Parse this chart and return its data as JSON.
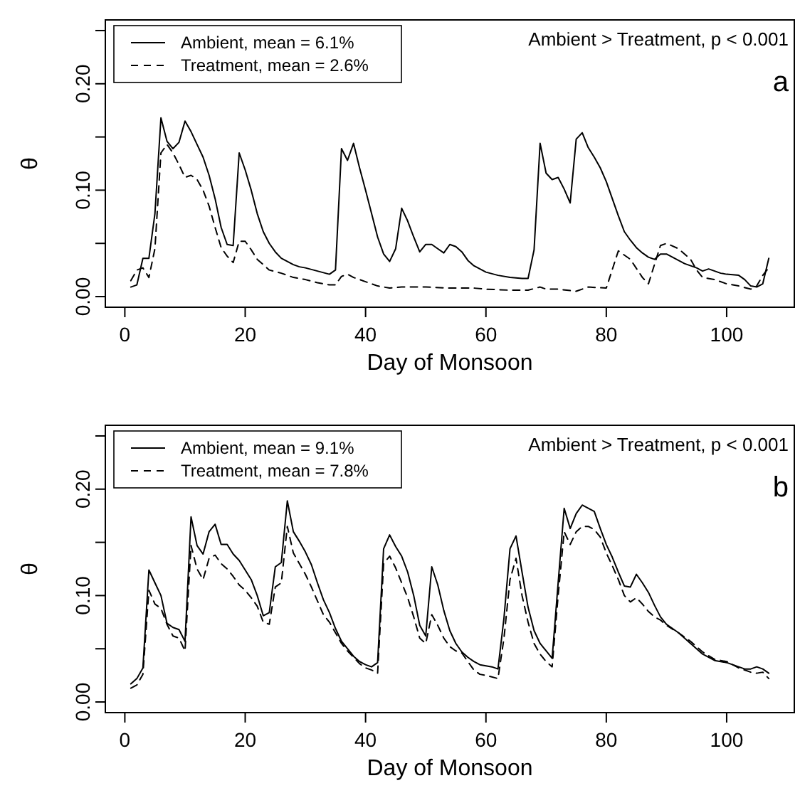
{
  "chart_data": [
    {
      "type": "line",
      "title": "a",
      "xlabel": "Day of Monsoon",
      "ylabel": "θ",
      "annotations": [
        "Ambient > Treatment, p < 0.001"
      ],
      "legend": "top left",
      "grid": false,
      "xlim": [
        -3.24,
        111.24
      ],
      "xticks": [
        0,
        20,
        40,
        60,
        80,
        100
      ],
      "ylim": [
        -0.01,
        0.26
      ],
      "yticks": [
        {
          "value": 0,
          "label": "0.00"
        },
        {
          "value": 0.05,
          "label": null
        },
        {
          "value": 0.1,
          "label": "0.10"
        },
        {
          "value": 0.15,
          "label": null
        },
        {
          "value": 0.2,
          "label": "0.20"
        },
        {
          "value": 0.25,
          "label": null
        }
      ],
      "series": [
        {
          "name": "Ambient, mean = 6.1%",
          "color": "#000000",
          "line_style": "solid",
          "x": [
            1,
            2,
            3,
            4,
            5,
            6,
            7,
            8,
            9,
            10,
            11,
            12,
            13,
            14,
            15,
            16,
            17,
            18,
            19,
            20,
            21,
            22,
            23,
            24,
            25,
            26,
            27,
            28,
            29,
            30,
            32,
            34,
            35,
            36,
            37,
            38,
            39,
            40,
            41,
            42,
            43,
            44,
            45,
            46,
            47,
            48,
            49,
            50,
            51,
            52,
            53,
            54,
            55,
            56,
            57,
            58,
            60,
            62,
            64,
            66,
            67,
            68,
            69,
            70,
            71,
            72,
            73,
            74,
            75,
            76,
            77,
            78,
            79,
            80,
            81,
            82,
            83,
            84,
            85,
            86,
            87,
            88,
            89,
            90,
            91,
            92,
            93,
            94,
            95,
            96,
            97,
            98,
            99,
            100,
            102,
            103,
            104,
            105,
            106,
            107
          ],
          "values": [
            0.009,
            0.011,
            0.036,
            0.036,
            0.078,
            0.168,
            0.146,
            0.139,
            0.145,
            0.165,
            0.155,
            0.143,
            0.131,
            0.114,
            0.092,
            0.065,
            0.049,
            0.048,
            0.135,
            0.119,
            0.1,
            0.078,
            0.061,
            0.05,
            0.042,
            0.036,
            0.033,
            0.03,
            0.028,
            0.027,
            0.024,
            0.021,
            0.025,
            0.139,
            0.128,
            0.144,
            0.121,
            0.1,
            0.078,
            0.056,
            0.04,
            0.033,
            0.045,
            0.083,
            0.071,
            0.056,
            0.042,
            0.049,
            0.049,
            0.045,
            0.041,
            0.049,
            0.047,
            0.042,
            0.034,
            0.029,
            0.023,
            0.02,
            0.018,
            0.017,
            0.017,
            0.044,
            0.144,
            0.116,
            0.11,
            0.112,
            0.101,
            0.088,
            0.148,
            0.154,
            0.14,
            0.131,
            0.121,
            0.108,
            0.092,
            0.076,
            0.061,
            0.053,
            0.046,
            0.041,
            0.037,
            0.035,
            0.04,
            0.04,
            0.037,
            0.034,
            0.031,
            0.029,
            0.027,
            0.024,
            0.026,
            0.024,
            0.022,
            0.021,
            0.02,
            0.016,
            0.01,
            0.009,
            0.012,
            0.036
          ]
        },
        {
          "name": "Treatment, mean = 2.6%",
          "color": "#000000",
          "line_style": "dashed",
          "x": [
            1,
            2,
            3,
            4,
            5,
            6,
            7,
            8,
            9,
            10,
            11,
            12,
            13,
            14,
            15,
            16,
            17,
            18,
            19,
            20,
            21,
            22,
            23,
            24,
            26,
            28,
            30,
            32,
            34,
            35,
            36,
            37,
            38,
            40,
            42,
            44,
            46,
            50,
            54,
            58,
            60,
            64,
            67,
            69,
            70,
            72,
            75,
            77,
            80,
            82,
            84,
            86,
            87,
            88,
            89,
            90,
            92,
            94,
            95,
            96,
            98,
            100,
            102,
            104,
            105,
            106,
            107
          ],
          "values": [
            0.015,
            0.025,
            0.027,
            0.018,
            0.045,
            0.135,
            0.143,
            0.135,
            0.124,
            0.112,
            0.114,
            0.11,
            0.1,
            0.085,
            0.065,
            0.046,
            0.038,
            0.032,
            0.052,
            0.052,
            0.044,
            0.035,
            0.03,
            0.025,
            0.022,
            0.018,
            0.016,
            0.013,
            0.011,
            0.011,
            0.019,
            0.021,
            0.018,
            0.014,
            0.01,
            0.008,
            0.009,
            0.009,
            0.008,
            0.008,
            0.007,
            0.006,
            0.006,
            0.009,
            0.007,
            0.007,
            0.005,
            0.009,
            0.008,
            0.043,
            0.035,
            0.018,
            0.012,
            0.03,
            0.048,
            0.05,
            0.045,
            0.035,
            0.025,
            0.018,
            0.016,
            0.012,
            0.01,
            0.007,
            0.01,
            0.02,
            0.027
          ]
        }
      ]
    },
    {
      "type": "line",
      "title": "b",
      "xlabel": "Day of Monsoon",
      "ylabel": "θ",
      "annotations": [
        "Ambient > Treatment, p < 0.001"
      ],
      "legend": "top left",
      "grid": false,
      "xlim": [
        -3.24,
        111.24
      ],
      "xticks": [
        0,
        20,
        40,
        60,
        80,
        100
      ],
      "ylim": [
        -0.01,
        0.26
      ],
      "yticks": [
        {
          "value": 0,
          "label": "0.00"
        },
        {
          "value": 0.05,
          "label": null
        },
        {
          "value": 0.1,
          "label": "0.10"
        },
        {
          "value": 0.15,
          "label": null
        },
        {
          "value": 0.2,
          "label": "0.20"
        },
        {
          "value": 0.25,
          "label": null
        }
      ],
      "series": [
        {
          "name": "Ambient, mean = 9.1%",
          "color": "#000000",
          "line_style": "solid",
          "x": [
            1,
            2,
            3,
            4,
            5,
            6,
            7,
            8,
            9,
            10,
            11,
            12,
            13,
            14,
            15,
            16,
            17,
            18,
            19,
            20,
            21,
            22,
            23,
            24,
            25,
            26,
            27,
            28,
            29,
            30,
            31,
            32,
            33,
            34,
            35,
            36,
            37,
            38,
            39,
            40,
            41,
            42,
            43,
            44,
            45,
            46,
            47,
            48,
            49,
            50,
            51,
            52,
            53,
            54,
            55,
            56,
            57,
            58,
            59,
            60,
            61,
            62,
            63,
            64,
            65,
            66,
            67,
            68,
            69,
            70,
            71,
            72,
            73,
            74,
            75,
            76,
            77,
            78,
            79,
            80,
            81,
            82,
            83,
            84,
            85,
            86,
            87,
            88,
            89,
            90,
            92,
            94,
            96,
            98,
            100,
            102,
            103,
            104,
            105,
            106,
            107
          ],
          "values": [
            0.017,
            0.022,
            0.032,
            0.124,
            0.112,
            0.1,
            0.074,
            0.07,
            0.068,
            0.057,
            0.174,
            0.147,
            0.139,
            0.16,
            0.167,
            0.148,
            0.148,
            0.139,
            0.133,
            0.124,
            0.115,
            0.1,
            0.081,
            0.084,
            0.127,
            0.131,
            0.189,
            0.16,
            0.151,
            0.141,
            0.129,
            0.112,
            0.096,
            0.084,
            0.069,
            0.057,
            0.05,
            0.043,
            0.038,
            0.035,
            0.033,
            0.037,
            0.144,
            0.157,
            0.146,
            0.137,
            0.122,
            0.1,
            0.072,
            0.062,
            0.127,
            0.11,
            0.086,
            0.067,
            0.055,
            0.047,
            0.042,
            0.038,
            0.035,
            0.034,
            0.033,
            0.031,
            0.079,
            0.144,
            0.156,
            0.122,
            0.089,
            0.067,
            0.055,
            0.048,
            0.041,
            0.112,
            0.182,
            0.163,
            0.177,
            0.185,
            0.182,
            0.179,
            0.163,
            0.148,
            0.136,
            0.122,
            0.109,
            0.108,
            0.12,
            0.112,
            0.103,
            0.091,
            0.08,
            0.073,
            0.065,
            0.055,
            0.045,
            0.039,
            0.037,
            0.033,
            0.031,
            0.031,
            0.033,
            0.031,
            0.027
          ]
        },
        {
          "name": "Treatment, mean = 7.8%",
          "color": "#000000",
          "line_style": "dashed",
          "x": [
            1,
            2,
            3,
            4,
            5,
            6,
            7,
            8,
            9,
            10,
            11,
            12,
            13,
            14,
            15,
            16,
            17,
            18,
            19,
            20,
            21,
            22,
            23,
            24,
            25,
            26,
            27,
            28,
            29,
            30,
            31,
            32,
            33,
            34,
            35,
            36,
            37,
            38,
            39,
            40,
            41,
            42,
            43,
            44,
            45,
            46,
            47,
            48,
            49,
            50,
            51,
            52,
            53,
            54,
            55,
            56,
            57,
            58,
            59,
            60,
            62,
            63,
            64,
            65,
            66,
            67,
            68,
            69,
            70,
            71,
            72,
            73,
            74,
            75,
            76,
            77,
            78,
            79,
            80,
            81,
            82,
            83,
            84,
            85,
            86,
            87,
            88,
            89,
            90,
            92,
            94,
            96,
            98,
            100,
            102,
            104,
            105,
            106,
            107
          ],
          "values": [
            0.013,
            0.016,
            0.026,
            0.105,
            0.092,
            0.088,
            0.073,
            0.062,
            0.06,
            0.048,
            0.147,
            0.125,
            0.115,
            0.135,
            0.138,
            0.13,
            0.125,
            0.118,
            0.11,
            0.105,
            0.098,
            0.09,
            0.075,
            0.073,
            0.108,
            0.112,
            0.165,
            0.14,
            0.13,
            0.12,
            0.108,
            0.095,
            0.082,
            0.075,
            0.065,
            0.055,
            0.048,
            0.042,
            0.036,
            0.032,
            0.03,
            0.027,
            0.13,
            0.137,
            0.126,
            0.112,
            0.098,
            0.08,
            0.06,
            0.055,
            0.082,
            0.072,
            0.06,
            0.052,
            0.048,
            0.046,
            0.038,
            0.03,
            0.026,
            0.025,
            0.022,
            0.06,
            0.115,
            0.135,
            0.1,
            0.075,
            0.055,
            0.045,
            0.038,
            0.033,
            0.1,
            0.16,
            0.148,
            0.16,
            0.165,
            0.165,
            0.162,
            0.155,
            0.14,
            0.128,
            0.115,
            0.1,
            0.094,
            0.098,
            0.092,
            0.085,
            0.08,
            0.077,
            0.072,
            0.065,
            0.057,
            0.047,
            0.04,
            0.038,
            0.032,
            0.028,
            0.027,
            0.028,
            0.022
          ]
        }
      ]
    }
  ]
}
